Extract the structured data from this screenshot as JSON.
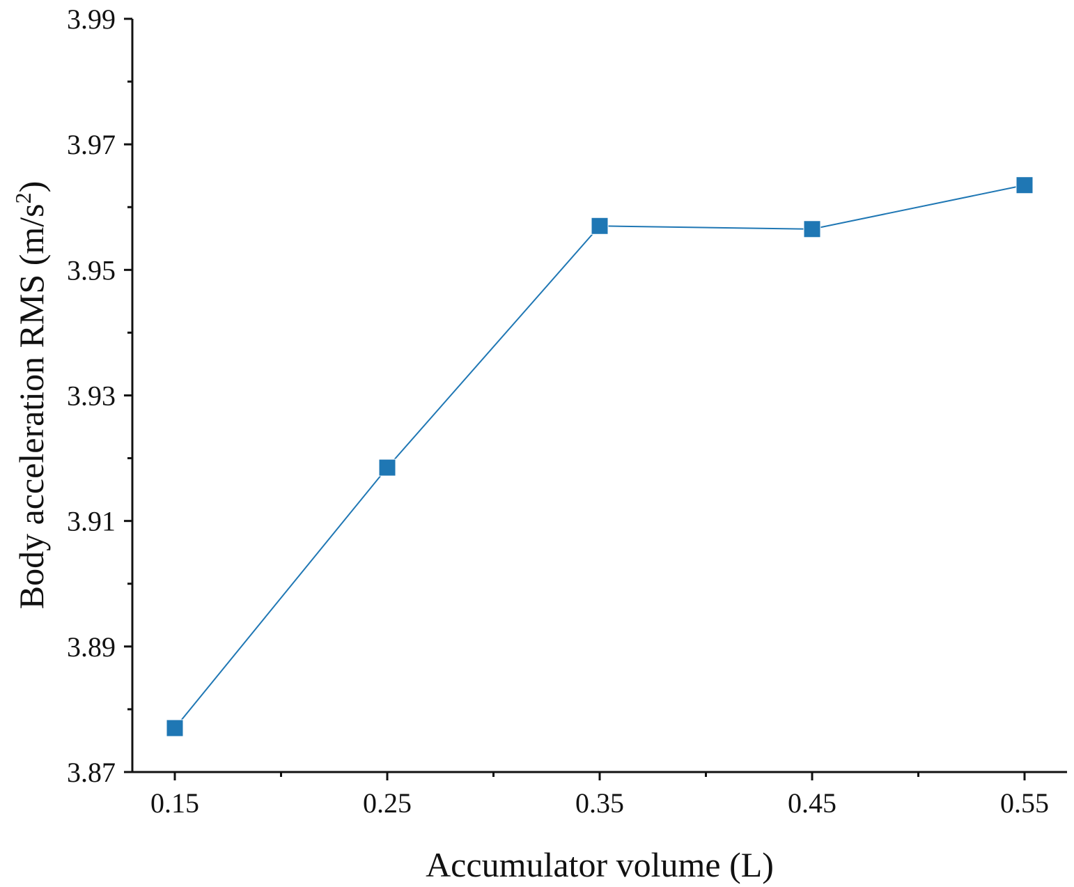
{
  "chart_data": {
    "type": "line",
    "title": "",
    "xlabel": "Accumulator volume (L)",
    "ylabel": {
      "prefix": "Body acceleration RMS (m/s",
      "superscript": "2",
      "suffix": ")"
    },
    "x": [
      0.15,
      0.25,
      0.35,
      0.45,
      0.55
    ],
    "x_tick_labels": [
      "0.15",
      "0.25",
      "0.35",
      "0.45",
      "0.55"
    ],
    "y_tick_values": [
      3.87,
      3.89,
      3.91,
      3.93,
      3.95,
      3.97,
      3.99
    ],
    "y_tick_labels": [
      "3.87",
      "3.89",
      "3.91",
      "3.93",
      "3.95",
      "3.97",
      "3.99"
    ],
    "xlim": [
      0.13,
      0.57
    ],
    "ylim": [
      3.87,
      3.99
    ],
    "series": [
      {
        "name": "Body acceleration RMS",
        "values": [
          3.877,
          3.9185,
          3.957,
          3.9565,
          3.9635
        ],
        "color": "#1f77b4",
        "marker": "square"
      }
    ],
    "grid": false,
    "legend": "none"
  }
}
